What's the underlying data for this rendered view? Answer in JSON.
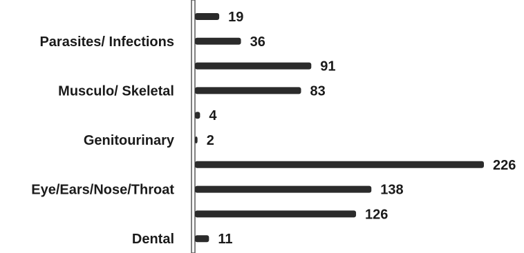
{
  "chart_data": {
    "type": "bar",
    "orientation": "horizontal",
    "categories": [
      "",
      "Parasites/ Infections",
      "",
      "Musculo/ Skeletal",
      "",
      "Genitourinary",
      "",
      "Eye/Ears/Nose/Throat",
      "",
      "Dental"
    ],
    "values": [
      19,
      36,
      91,
      83,
      4,
      2,
      226,
      138,
      126,
      11
    ],
    "xlim": [
      0,
      226
    ],
    "grid": false,
    "legend": "none",
    "bar_color": "#2b2b2b"
  }
}
